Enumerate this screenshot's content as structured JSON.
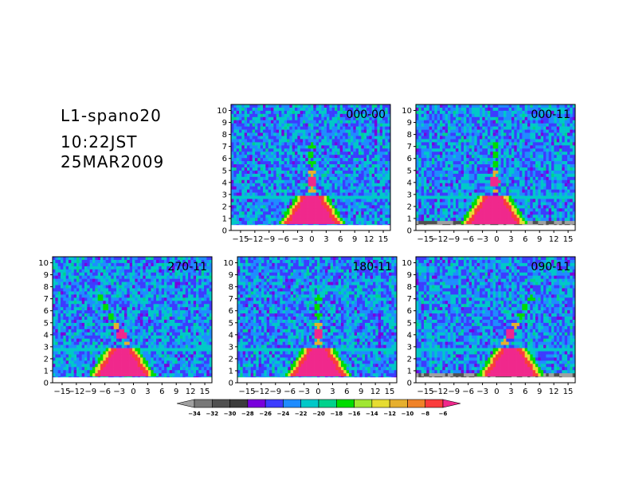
{
  "header": {
    "line1": "L1-spano20",
    "line2": "10:22JST",
    "line3": "25MAR2009"
  },
  "chart_data": {
    "type": "heatmap",
    "x_ticks": [
      "-15",
      "-12",
      "-9",
      "-6",
      "-3",
      "0",
      "3",
      "6",
      "9",
      "12",
      "15"
    ],
    "y_ticks": [
      "0",
      "1",
      "2",
      "3",
      "4",
      "5",
      "6",
      "7",
      "8",
      "9",
      "10"
    ],
    "xlim": [
      -17,
      16.5
    ],
    "ylim": [
      0,
      10.5
    ],
    "panels": [
      {
        "label": "000-00",
        "plume_x": 0,
        "tail_dir": 0
      },
      {
        "label": "000-11",
        "plume_x": -1,
        "tail_dir": 0
      },
      {
        "label": "270-11",
        "plume_x": -4,
        "tail_dir": -1
      },
      {
        "label": "180-11",
        "plume_x": 0,
        "tail_dir": 0
      },
      {
        "label": "090-11",
        "plume_x": 5,
        "tail_dir": 1
      }
    ],
    "colorbar": {
      "levels": [
        "-34",
        "-32",
        "-30",
        "-28",
        "-26",
        "-24",
        "-22",
        "-20",
        "-18",
        "-16",
        "-14",
        "-12",
        "-10",
        "-8",
        "-6"
      ],
      "colors": [
        "#a0a0a0",
        "#787878",
        "#505050",
        "#3c3c3c",
        "#7800dc",
        "#3c3cff",
        "#1e8cff",
        "#00c8c8",
        "#00d28c",
        "#00dc00",
        "#a0e632",
        "#e6dc32",
        "#e6af2d",
        "#f08228",
        "#fa3c3c",
        "#f0288c"
      ]
    }
  }
}
